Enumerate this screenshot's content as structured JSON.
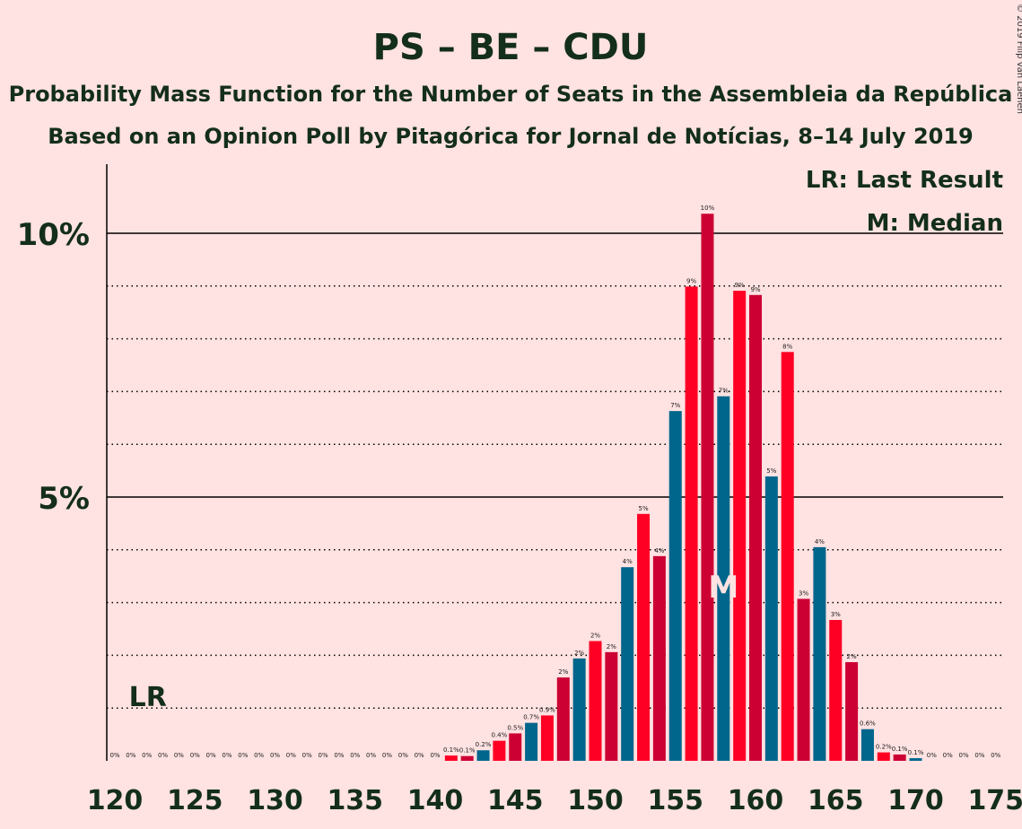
{
  "title": "PS – BE – CDU",
  "subtitle1": "Probability Mass Function for the Number of Seats in the Assembleia da República",
  "subtitle2": "Based on an Opinion Poll by Pitagórica for Jornal de Notícias, 8–14 July 2019",
  "copyright": "© 2019 Filip van Laenen",
  "legend": {
    "lr": "LR: Last Result",
    "median": "M: Median"
  },
  "lr_marker": "LR",
  "median_marker": "M",
  "colors": {
    "background": "#FFE2E2",
    "ps_red": "#FF0025",
    "dark_red": "#CC0033",
    "blue": "#00668C",
    "text": "#132E1A"
  },
  "chart_data": {
    "type": "bar",
    "xlabel": "",
    "ylabel": "",
    "xlim": [
      120,
      175
    ],
    "ylim": [
      0,
      11.3
    ],
    "x_ticks": [
      120,
      125,
      130,
      135,
      140,
      145,
      150,
      155,
      160,
      165,
      170,
      175
    ],
    "x_tick_labels": [
      "120",
      "125",
      "130",
      "135",
      "140",
      "145",
      "150",
      "155",
      "160",
      "165",
      "170",
      "175"
    ],
    "y_major_ticks": [
      5,
      10
    ],
    "y_tick_labels": [
      "5%",
      "10%"
    ],
    "y_minor_gridlines": [
      1,
      2,
      3,
      4,
      6,
      7,
      8,
      9
    ],
    "grid": true,
    "last_result": 122,
    "median": 158,
    "bars": [
      {
        "x": 120,
        "value": 0,
        "label": "0%",
        "color": "blue"
      },
      {
        "x": 121,
        "value": 0,
        "label": "0%",
        "color": "ps_red"
      },
      {
        "x": 122,
        "value": 0,
        "label": "0%",
        "color": "dark_red"
      },
      {
        "x": 123,
        "value": 0,
        "label": "0%",
        "color": "blue"
      },
      {
        "x": 124,
        "value": 0,
        "label": "0%",
        "color": "ps_red"
      },
      {
        "x": 125,
        "value": 0,
        "label": "0%",
        "color": "dark_red"
      },
      {
        "x": 126,
        "value": 0,
        "label": "0%",
        "color": "blue"
      },
      {
        "x": 127,
        "value": 0,
        "label": "0%",
        "color": "ps_red"
      },
      {
        "x": 128,
        "value": 0,
        "label": "0%",
        "color": "dark_red"
      },
      {
        "x": 129,
        "value": 0,
        "label": "0%",
        "color": "blue"
      },
      {
        "x": 130,
        "value": 0,
        "label": "0%",
        "color": "ps_red"
      },
      {
        "x": 131,
        "value": 0,
        "label": "0%",
        "color": "dark_red"
      },
      {
        "x": 132,
        "value": 0,
        "label": "0%",
        "color": "blue"
      },
      {
        "x": 133,
        "value": 0,
        "label": "0%",
        "color": "ps_red"
      },
      {
        "x": 134,
        "value": 0,
        "label": "0%",
        "color": "dark_red"
      },
      {
        "x": 135,
        "value": 0,
        "label": "0%",
        "color": "blue"
      },
      {
        "x": 136,
        "value": 0,
        "label": "0%",
        "color": "ps_red"
      },
      {
        "x": 137,
        "value": 0,
        "label": "0%",
        "color": "dark_red"
      },
      {
        "x": 138,
        "value": 0,
        "label": "0%",
        "color": "blue"
      },
      {
        "x": 139,
        "value": 0,
        "label": "0%",
        "color": "ps_red"
      },
      {
        "x": 140,
        "value": 0,
        "label": "0%",
        "color": "dark_red"
      },
      {
        "x": 141,
        "value": 0.1,
        "label": "0.1%",
        "color": "ps_red"
      },
      {
        "x": 142,
        "value": 0.09,
        "label": "0.1%",
        "color": "dark_red"
      },
      {
        "x": 143,
        "value": 0.2,
        "label": "0.2%",
        "color": "blue"
      },
      {
        "x": 144,
        "value": 0.38,
        "label": "0.4%",
        "color": "ps_red"
      },
      {
        "x": 145,
        "value": 0.52,
        "label": "0.5%",
        "color": "dark_red"
      },
      {
        "x": 146,
        "value": 0.72,
        "label": "0.7%",
        "color": "blue"
      },
      {
        "x": 147,
        "value": 0.86,
        "label": "0.9%",
        "color": "ps_red"
      },
      {
        "x": 148,
        "value": 1.58,
        "label": "2%",
        "color": "dark_red"
      },
      {
        "x": 149,
        "value": 1.94,
        "label": "2%",
        "color": "blue"
      },
      {
        "x": 150,
        "value": 2.27,
        "label": "2%",
        "color": "ps_red"
      },
      {
        "x": 151,
        "value": 2.06,
        "label": "2%",
        "color": "dark_red"
      },
      {
        "x": 152,
        "value": 3.67,
        "label": "4%",
        "color": "blue"
      },
      {
        "x": 153,
        "value": 4.68,
        "label": "5%",
        "color": "ps_red"
      },
      {
        "x": 154,
        "value": 3.88,
        "label": "4%",
        "color": "dark_red"
      },
      {
        "x": 155,
        "value": 6.63,
        "label": "7%",
        "color": "blue"
      },
      {
        "x": 156,
        "value": 8.99,
        "label": "9%",
        "color": "ps_red"
      },
      {
        "x": 157,
        "value": 10.37,
        "label": "10%",
        "color": "dark_red"
      },
      {
        "x": 158,
        "value": 6.91,
        "label": "7%",
        "color": "blue"
      },
      {
        "x": 159,
        "value": 8.91,
        "label": "9%",
        "color": "ps_red"
      },
      {
        "x": 160,
        "value": 8.83,
        "label": "9%",
        "color": "dark_red"
      },
      {
        "x": 161,
        "value": 5.39,
        "label": "5%",
        "color": "blue"
      },
      {
        "x": 162,
        "value": 7.75,
        "label": "8%",
        "color": "ps_red"
      },
      {
        "x": 163,
        "value": 3.07,
        "label": "3%",
        "color": "dark_red"
      },
      {
        "x": 164,
        "value": 4.05,
        "label": "4%",
        "color": "blue"
      },
      {
        "x": 165,
        "value": 2.67,
        "label": "3%",
        "color": "ps_red"
      },
      {
        "x": 166,
        "value": 1.87,
        "label": "2%",
        "color": "dark_red"
      },
      {
        "x": 167,
        "value": 0.6,
        "label": "0.6%",
        "color": "blue"
      },
      {
        "x": 168,
        "value": 0.16,
        "label": "0.2%",
        "color": "ps_red"
      },
      {
        "x": 169,
        "value": 0.12,
        "label": "0.1%",
        "color": "dark_red"
      },
      {
        "x": 170,
        "value": 0.05,
        "label": "0.1%",
        "color": "blue"
      },
      {
        "x": 171,
        "value": 0,
        "label": "0%",
        "color": "ps_red"
      },
      {
        "x": 172,
        "value": 0,
        "label": "0%",
        "color": "dark_red"
      },
      {
        "x": 173,
        "value": 0,
        "label": "0%",
        "color": "blue"
      },
      {
        "x": 174,
        "value": 0,
        "label": "0%",
        "color": "ps_red"
      },
      {
        "x": 175,
        "value": 0,
        "label": "0%",
        "color": "dark_red"
      }
    ]
  }
}
